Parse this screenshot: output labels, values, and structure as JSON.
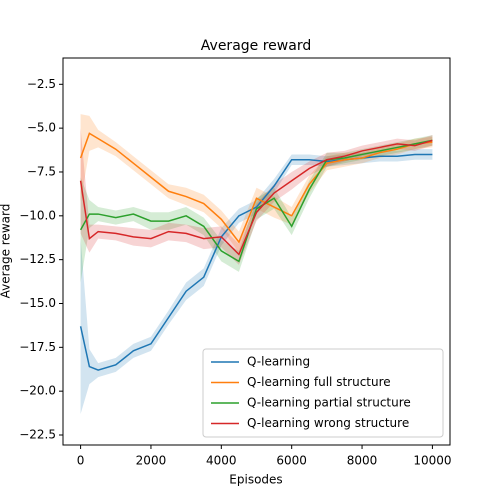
{
  "chart_data": {
    "type": "line",
    "title": "Average reward",
    "xlabel": "Episodes",
    "ylabel": "Average reward",
    "x": [
      0,
      250,
      500,
      1000,
      1500,
      2000,
      2500,
      3000,
      3500,
      4000,
      4500,
      5000,
      5500,
      6000,
      6500,
      7000,
      7500,
      8000,
      8500,
      9000,
      9500,
      10000
    ],
    "series": [
      {
        "name": "Q-learning",
        "color": "#1f77b4",
        "values": [
          -16.3,
          -18.6,
          -18.8,
          -18.5,
          -17.7,
          -17.3,
          -15.8,
          -14.3,
          -13.5,
          -11.2,
          -10.0,
          -9.5,
          -8.3,
          -6.8,
          -6.8,
          -6.9,
          -6.8,
          -6.7,
          -6.6,
          -6.6,
          -6.5,
          -6.5
        ],
        "error": [
          5.0,
          1.0,
          0.4,
          0.4,
          0.4,
          0.4,
          0.4,
          0.5,
          0.5,
          0.5,
          0.4,
          0.4,
          0.4,
          0.3,
          0.3,
          0.3,
          0.3,
          0.3,
          0.3,
          0.3,
          0.3,
          0.3
        ]
      },
      {
        "name": "Q-learning full structure",
        "color": "#ff7f0e",
        "values": [
          -6.7,
          -5.3,
          -5.6,
          -6.2,
          -7.0,
          -7.8,
          -8.6,
          -8.9,
          -9.3,
          -10.2,
          -11.5,
          -9.0,
          -9.5,
          -10.0,
          -8.2,
          -7.0,
          -6.8,
          -6.7,
          -6.4,
          -6.2,
          -5.9,
          -5.8
        ],
        "error": [
          2.5,
          1.0,
          0.5,
          0.4,
          0.4,
          0.4,
          0.4,
          0.5,
          0.5,
          0.5,
          0.6,
          0.6,
          0.6,
          0.5,
          0.5,
          0.4,
          0.4,
          0.3,
          0.3,
          0.3,
          0.3,
          0.3
        ]
      },
      {
        "name": "Q-learning partial structure",
        "color": "#2ca02c",
        "values": [
          -10.8,
          -9.9,
          -9.9,
          -10.1,
          -9.9,
          -10.3,
          -10.3,
          -10.0,
          -10.6,
          -12.0,
          -12.6,
          -9.6,
          -9.0,
          -10.6,
          -8.5,
          -6.8,
          -6.7,
          -6.5,
          -6.3,
          -6.1,
          -5.9,
          -5.7
        ],
        "error": [
          3.0,
          0.8,
          0.4,
          0.4,
          0.4,
          0.5,
          0.5,
          0.5,
          0.5,
          0.6,
          0.6,
          0.6,
          0.6,
          0.5,
          0.5,
          0.4,
          0.3,
          0.3,
          0.3,
          0.3,
          0.3,
          0.3
        ]
      },
      {
        "name": "Q-learning wrong structure",
        "color": "#d62728",
        "values": [
          -8.0,
          -11.3,
          -10.9,
          -11.0,
          -11.2,
          -11.3,
          -10.9,
          -11.0,
          -11.3,
          -11.2,
          -12.2,
          -9.8,
          -8.7,
          -8.0,
          -7.3,
          -6.8,
          -6.6,
          -6.3,
          -6.1,
          -5.9,
          -6.0,
          -5.7
        ],
        "error": [
          3.0,
          0.8,
          0.4,
          0.4,
          0.5,
          0.5,
          0.5,
          0.5,
          0.6,
          0.6,
          0.6,
          0.5,
          0.5,
          0.5,
          0.4,
          0.4,
          0.3,
          0.3,
          0.3,
          0.3,
          0.3,
          0.3
        ]
      }
    ],
    "xlim": [
      -500,
      10500
    ],
    "ylim": [
      -23.07,
      -1.0
    ],
    "xticks": [
      0,
      2000,
      4000,
      6000,
      8000,
      10000
    ],
    "yticks": [
      {
        "value": -22.5,
        "label": "−22.5"
      },
      {
        "value": -20.0,
        "label": "−20.0"
      },
      {
        "value": -17.5,
        "label": "−17.5"
      },
      {
        "value": -15.0,
        "label": "−15.0"
      },
      {
        "value": -12.5,
        "label": "−12.5"
      },
      {
        "value": -10.0,
        "label": "−10.0"
      },
      {
        "value": -7.5,
        "label": "−7.5"
      },
      {
        "value": -5.0,
        "label": "−5.0"
      },
      {
        "value": -2.5,
        "label": "−2.5"
      }
    ],
    "legend": "lower right"
  }
}
